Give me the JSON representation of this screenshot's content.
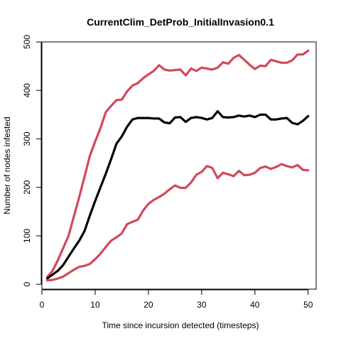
{
  "chart_data": {
    "type": "line",
    "title": "CurrentClim_DetProb_InitialInvasion0.1",
    "xlabel": "Time since incursion detected (timesteps)",
    "ylabel": "Number of nodes infested",
    "xlim": [
      0,
      51.5
    ],
    "ylim": [
      -10,
      500
    ],
    "xticks": [
      0,
      10,
      20,
      30,
      40,
      50
    ],
    "yticks": [
      0,
      100,
      200,
      300,
      400,
      500
    ],
    "grid": false,
    "x": [
      1,
      2,
      3,
      4,
      5,
      6,
      7,
      8,
      9,
      10,
      11,
      12,
      13,
      14,
      15,
      16,
      17,
      18,
      19,
      20,
      21,
      22,
      23,
      24,
      25,
      26,
      27,
      28,
      29,
      30,
      31,
      32,
      33,
      34,
      35,
      36,
      37,
      38,
      39,
      40,
      41,
      42,
      43,
      44,
      45,
      46,
      47,
      48,
      49,
      50
    ],
    "series": [
      {
        "color": "#d1495b",
        "values": [
          15,
          28,
          50,
          75,
          100,
          140,
          180,
          222,
          265,
          295,
          322,
          355,
          368,
          380,
          381,
          398,
          410,
          415,
          425,
          433,
          440,
          452,
          443,
          441,
          442,
          443,
          431,
          445,
          440,
          447,
          445,
          443,
          447,
          458,
          455,
          467,
          473,
          463,
          453,
          444,
          451,
          450,
          463,
          460,
          457,
          457,
          462,
          474,
          474,
          482
        ]
      },
      {
        "color": "#000000",
        "values": [
          12,
          20,
          28,
          40,
          57,
          74,
          90,
          110,
          142,
          172,
          200,
          228,
          258,
          290,
          305,
          325,
          340,
          343,
          343,
          343,
          342,
          342,
          334,
          332,
          344,
          345,
          335,
          343,
          345,
          343,
          340,
          343,
          357,
          345,
          344,
          345,
          348,
          346,
          348,
          345,
          350,
          350,
          340,
          340,
          342,
          343,
          333,
          330,
          337,
          347
        ]
      },
      {
        "color": "#d1495b",
        "values": [
          8,
          9,
          12,
          16,
          23,
          30,
          36,
          38,
          42,
          52,
          63,
          77,
          90,
          97,
          105,
          124,
          129,
          133,
          152,
          166,
          174,
          180,
          187,
          196,
          204,
          199,
          199,
          210,
          226,
          232,
          244,
          240,
          219,
          230,
          227,
          223,
          234,
          225,
          226,
          230,
          240,
          243,
          238,
          242,
          248,
          244,
          241,
          246,
          236,
          235
        ]
      }
    ]
  }
}
